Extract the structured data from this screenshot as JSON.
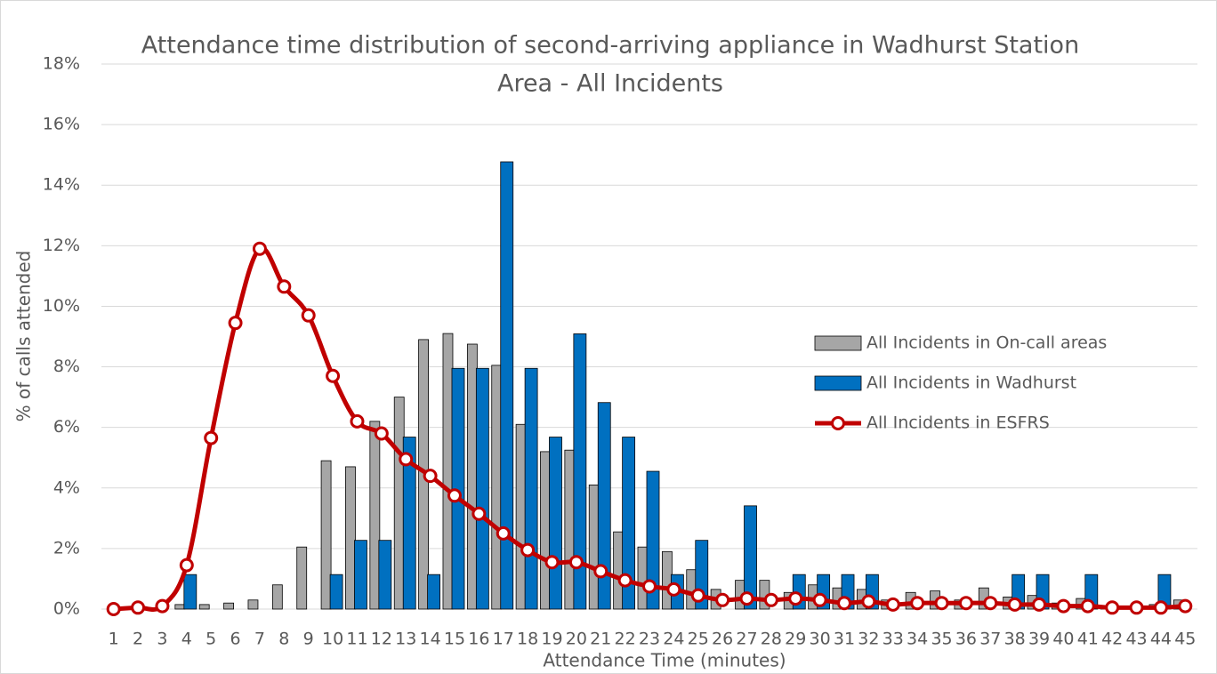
{
  "chart_data": {
    "type": "bar",
    "title": "Attendance time distribution of second-arriving appliance in Wadhurst Station",
    "subtitle": "Area - All Incidents",
    "x_label": "Attendance Time (minutes)",
    "y_label": "% of calls attended",
    "categories": [
      "1",
      "2",
      "3",
      "4",
      "5",
      "6",
      "7",
      "8",
      "9",
      "10",
      "11",
      "12",
      "13",
      "14",
      "15",
      "16",
      "17",
      "18",
      "19",
      "20",
      "21",
      "22",
      "23",
      "24",
      "25",
      "26",
      "27",
      "28",
      "29",
      "30",
      "31",
      "32",
      "33",
      "34",
      "35",
      "36",
      "37",
      "38",
      "39",
      "40",
      "41",
      "42",
      "43",
      "44",
      "45"
    ],
    "series": [
      {
        "name": "All Incidents in On-call areas",
        "type": "bar",
        "color": "#a6a6a6",
        "values": [
          0,
          0,
          0,
          0.15,
          0.15,
          0.2,
          0.3,
          0.8,
          2.05,
          4.9,
          4.7,
          6.2,
          7.0,
          8.9,
          9.1,
          8.75,
          8.05,
          6.1,
          5.2,
          5.25,
          4.1,
          2.55,
          2.05,
          1.9,
          1.3,
          0.65,
          0.95,
          0.95,
          0.55,
          0.8,
          0.7,
          0.65,
          0.3,
          0.55,
          0.6,
          0.3,
          0.7,
          0.4,
          0.45,
          0.2,
          0.35,
          0.1,
          0.1,
          0.15,
          0.3
        ]
      },
      {
        "name": "All Incidents in Wadhurst",
        "type": "bar",
        "color": "#0070c0",
        "values": [
          0,
          0,
          0,
          1.14,
          0,
          0,
          0,
          0,
          0,
          1.14,
          2.27,
          2.27,
          5.68,
          1.14,
          7.95,
          7.95,
          14.77,
          7.95,
          5.68,
          9.09,
          6.82,
          5.68,
          4.55,
          1.14,
          2.27,
          0,
          3.41,
          0,
          1.14,
          1.14,
          1.14,
          1.14,
          0,
          0,
          0,
          0,
          0,
          1.14,
          1.14,
          0,
          1.14,
          0,
          0,
          1.14,
          0
        ]
      },
      {
        "name": "All Incidents in ESFRS",
        "type": "line",
        "color": "#c00000",
        "smooth": true,
        "values": [
          0,
          0.05,
          0.1,
          1.45,
          5.65,
          9.45,
          11.9,
          10.65,
          9.7,
          7.7,
          6.2,
          5.8,
          4.95,
          4.4,
          3.75,
          3.15,
          2.5,
          1.95,
          1.55,
          1.55,
          1.25,
          0.95,
          0.75,
          0.65,
          0.45,
          0.3,
          0.35,
          0.3,
          0.35,
          0.3,
          0.2,
          0.25,
          0.15,
          0.2,
          0.2,
          0.2,
          0.2,
          0.15,
          0.15,
          0.1,
          0.1,
          0.05,
          0.05,
          0.05,
          0.1
        ]
      }
    ],
    "ylim": [
      0,
      18
    ],
    "yticks": [
      {
        "value": 0,
        "label": "0%"
      },
      {
        "value": 2,
        "label": "2%"
      },
      {
        "value": 4,
        "label": "4%"
      },
      {
        "value": 6,
        "label": "6%"
      },
      {
        "value": 8,
        "label": "8%"
      },
      {
        "value": 10,
        "label": "10%"
      },
      {
        "value": 12,
        "label": "12%"
      },
      {
        "value": 14,
        "label": "14%"
      },
      {
        "value": 16,
        "label": "16%"
      },
      {
        "value": 18,
        "label": "18%"
      }
    ],
    "grid": true,
    "legend": "right"
  }
}
